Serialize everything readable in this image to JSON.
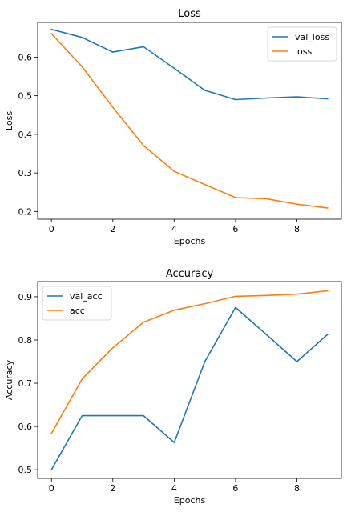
{
  "chart_data": [
    {
      "type": "line",
      "title": "Loss",
      "xlabel": "Epochs",
      "ylabel": "Loss",
      "x": [
        0,
        1,
        2,
        3,
        4,
        5,
        6,
        7,
        8,
        9
      ],
      "xlim": [
        -0.45,
        9.45
      ],
      "ylim": [
        0.18,
        0.69
      ],
      "xticks": [
        0,
        2,
        4,
        6,
        8
      ],
      "yticks": [
        0.2,
        0.3,
        0.4,
        0.5,
        0.6
      ],
      "ytick_labels": [
        "0.2",
        "0.3",
        "0.4",
        "0.5",
        "0.6"
      ],
      "grid": false,
      "legend_position": "top-right",
      "series": [
        {
          "name": "val_loss",
          "color": "#1f77b4",
          "values": [
            0.672,
            0.651,
            0.613,
            0.627,
            0.571,
            0.514,
            0.49,
            0.494,
            0.497,
            0.492
          ]
        },
        {
          "name": "loss",
          "color": "#ff7f0e",
          "values": [
            0.661,
            0.575,
            0.47,
            0.371,
            0.304,
            0.27,
            0.236,
            0.233,
            0.219,
            0.209
          ]
        }
      ]
    },
    {
      "type": "line",
      "title": "Accuracy",
      "xlabel": "Epochs",
      "ylabel": "Accuracy",
      "x": [
        0,
        1,
        2,
        3,
        4,
        5,
        6,
        7,
        8,
        9
      ],
      "xlim": [
        -0.45,
        9.45
      ],
      "ylim": [
        0.48,
        0.935
      ],
      "xticks": [
        0,
        2,
        4,
        6,
        8
      ],
      "yticks": [
        0.5,
        0.6,
        0.7,
        0.8,
        0.9
      ],
      "ytick_labels": [
        "0.5",
        "0.6",
        "0.7",
        "0.8",
        "0.9"
      ],
      "grid": false,
      "legend_position": "top-left",
      "series": [
        {
          "name": "val_acc",
          "color": "#1f77b4",
          "values": [
            0.5,
            0.625,
            0.625,
            0.625,
            0.563,
            0.75,
            0.875,
            0.813,
            0.75,
            0.813
          ]
        },
        {
          "name": "acc",
          "color": "#ff7f0e",
          "values": [
            0.584,
            0.71,
            0.782,
            0.841,
            0.869,
            0.884,
            0.901,
            0.903,
            0.906,
            0.914
          ]
        }
      ]
    }
  ]
}
